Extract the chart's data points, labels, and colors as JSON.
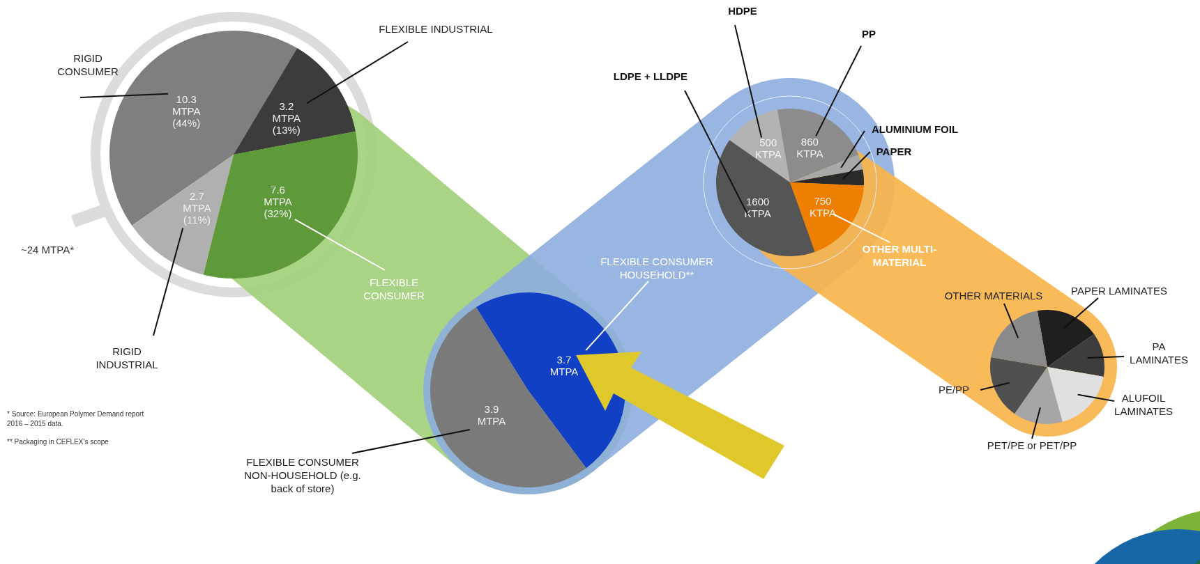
{
  "chart_data": [
    {
      "type": "pie",
      "categories": [
        "RIGID CONSUMER",
        "FLEXIBLE INDUSTRIAL",
        "FLEXIBLE CONSUMER",
        "RIGID INDUSTRIAL"
      ],
      "values": [
        10.3,
        3.2,
        7.6,
        2.7
      ],
      "colors": [
        "#7f7f7f",
        "#3c3c3c",
        "#5e9a3a",
        "#b0b0b0"
      ],
      "value_labels": [
        "10.3 MTPA (44%)",
        "3.2 MTPA (13%)",
        "7.6 MTPA (32%)",
        "2.7 MTPA (11%)"
      ],
      "annotations": [
        "~24 MTPA*",
        "* Source: European Polymer Demand report 2016 – 2015 data.",
        "** Packaging in CEFLEX's scope"
      ]
    },
    {
      "type": "pie",
      "categories": [
        "FLEXIBLE CONSUMER HOUSEHOLD**",
        "FLEXIBLE CONSUMER NON-HOUSEHOLD (e.g. back of store)"
      ],
      "values": [
        3.7,
        3.9
      ],
      "colors": [
        "#1140c4",
        "#7a7a7a"
      ],
      "value_labels": [
        "3.7 MTPA",
        "3.9 MTPA"
      ]
    },
    {
      "type": "pie",
      "categories": [
        "HDPE",
        "PP",
        "ALUMINIUM FOIL",
        "PAPER",
        "OTHER MULTI-MATERIAL",
        "LDPE + LLDPE"
      ],
      "values": [
        500,
        860,
        130,
        140,
        750,
        1600
      ],
      "colors": [
        "#b3b3b3",
        "#8c8c8c",
        "#a9a9a9",
        "#2a2a2a",
        "#ee7f00",
        "#555555"
      ],
      "value_labels": [
        "500 KTPA",
        "860 KTPA",
        null,
        null,
        "750 KTPA",
        "1600 KTPA"
      ]
    },
    {
      "type": "pie",
      "categories": [
        "PAPER LAMINATES",
        "PA LAMINATES",
        "ALUFOIL LAMINATES",
        "PET/PE or PET/PP",
        "PE/PP",
        "OTHER MATERIALS"
      ],
      "values": [
        18,
        12.5,
        18,
        14,
        18,
        19.5
      ],
      "colors": [
        "#1f1f1f",
        "#3d3d3d",
        "#e0e0e0",
        "#a6a6a6",
        "#505050",
        "#8a8a8a"
      ]
    }
  ]
}
